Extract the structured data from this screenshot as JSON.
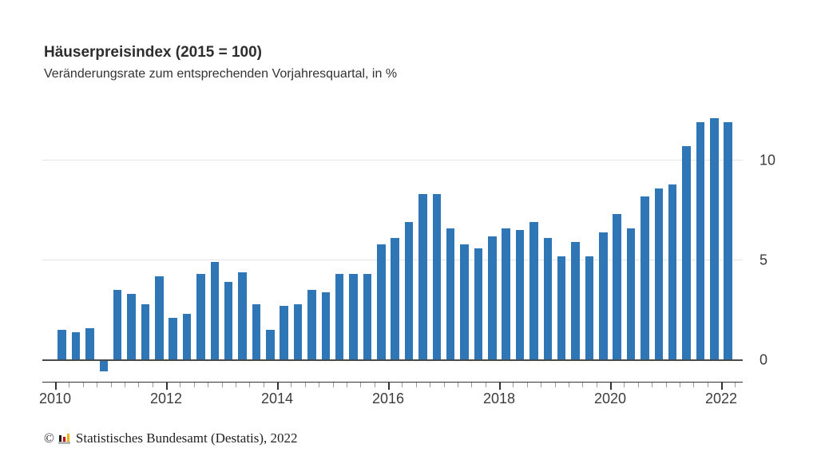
{
  "header": {
    "title": "Häuserpreisindex (2015 = 100)",
    "subtitle": "Veränderungsrate zum entsprechenden Vorjahresquartal, in %"
  },
  "footer": {
    "copyright": "©",
    "source": "Statistisches Bundesamt (Destatis), 2022",
    "logo_icon": "destatis-bar-chart-logo",
    "logo_colors": {
      "bar1": "#1a1a1a",
      "bar2": "#cc0000",
      "bar3": "#f0b400",
      "base": "#b3b3b3"
    }
  },
  "chart_data": {
    "type": "bar",
    "title": "Häuserpreisindex (2015 = 100)",
    "subtitle": "Veränderungsrate zum entsprechenden Vorjahresquartal, in %",
    "unit": "%",
    "bar_color": "#2e76b5",
    "categories": [
      "2010-Q1",
      "2010-Q2",
      "2010-Q3",
      "2010-Q4",
      "2011-Q1",
      "2011-Q2",
      "2011-Q3",
      "2011-Q4",
      "2012-Q1",
      "2012-Q2",
      "2012-Q3",
      "2012-Q4",
      "2013-Q1",
      "2013-Q2",
      "2013-Q3",
      "2013-Q4",
      "2014-Q1",
      "2014-Q2",
      "2014-Q3",
      "2014-Q4",
      "2015-Q1",
      "2015-Q2",
      "2015-Q3",
      "2015-Q4",
      "2016-Q1",
      "2016-Q2",
      "2016-Q3",
      "2016-Q4",
      "2017-Q1",
      "2017-Q2",
      "2017-Q3",
      "2017-Q4",
      "2018-Q1",
      "2018-Q2",
      "2018-Q3",
      "2018-Q4",
      "2019-Q1",
      "2019-Q2",
      "2019-Q3",
      "2019-Q4",
      "2020-Q1",
      "2020-Q2",
      "2020-Q3",
      "2020-Q4",
      "2021-Q1",
      "2021-Q2",
      "2021-Q3",
      "2021-Q4",
      "2022-Q1"
    ],
    "values": [
      1.5,
      1.4,
      1.6,
      -0.5,
      3.5,
      3.3,
      2.8,
      4.2,
      2.1,
      2.3,
      4.3,
      4.9,
      3.9,
      4.4,
      2.8,
      1.5,
      2.7,
      2.8,
      3.5,
      3.4,
      4.3,
      4.3,
      4.3,
      5.8,
      6.1,
      6.9,
      8.3,
      8.3,
      6.6,
      5.8,
      5.6,
      6.2,
      6.6,
      6.5,
      6.9,
      6.1,
      5.2,
      5.9,
      5.2,
      6.4,
      7.3,
      6.6,
      8.2,
      8.6,
      8.8,
      10.7,
      11.9,
      12.1,
      11.9
    ],
    "x_axis": {
      "tick_years": [
        "2010",
        "2012",
        "2014",
        "2016",
        "2018",
        "2020",
        "2022"
      ],
      "minor_tick_interval": "quarter"
    },
    "y_axis": {
      "ticks": [
        0,
        5,
        10
      ],
      "range": [
        -1,
        12.6
      ],
      "label_side": "right"
    },
    "grid": "horizontal-light",
    "legend": "none",
    "baseline": 0
  }
}
